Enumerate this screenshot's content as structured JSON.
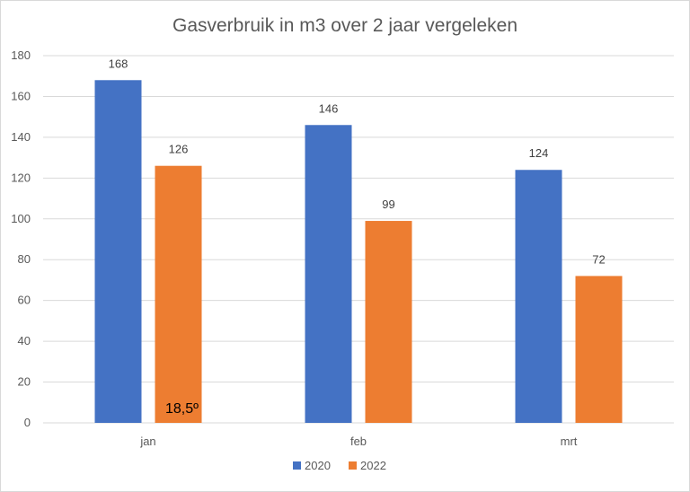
{
  "chart_data": {
    "type": "bar",
    "title": "Gasverbruik in m3 over 2 jaar vergeleken",
    "categories": [
      "jan",
      "feb",
      "mrt"
    ],
    "series": [
      {
        "name": "2020",
        "values": [
          168,
          146,
          124
        ],
        "color": "#4472C4"
      },
      {
        "name": "2022",
        "values": [
          126,
          99,
          72
        ],
        "color": "#ED7D31"
      }
    ],
    "ylim": [
      0,
      180
    ],
    "yticks": [
      0,
      20,
      40,
      60,
      80,
      100,
      120,
      140,
      160,
      180
    ],
    "grid": true,
    "legend": "bottom",
    "annotation": {
      "text": "18,5º",
      "category": "jan",
      "series": "2022"
    }
  },
  "colors": {
    "gridline": "#d9d9d9",
    "text": "#595959"
  }
}
